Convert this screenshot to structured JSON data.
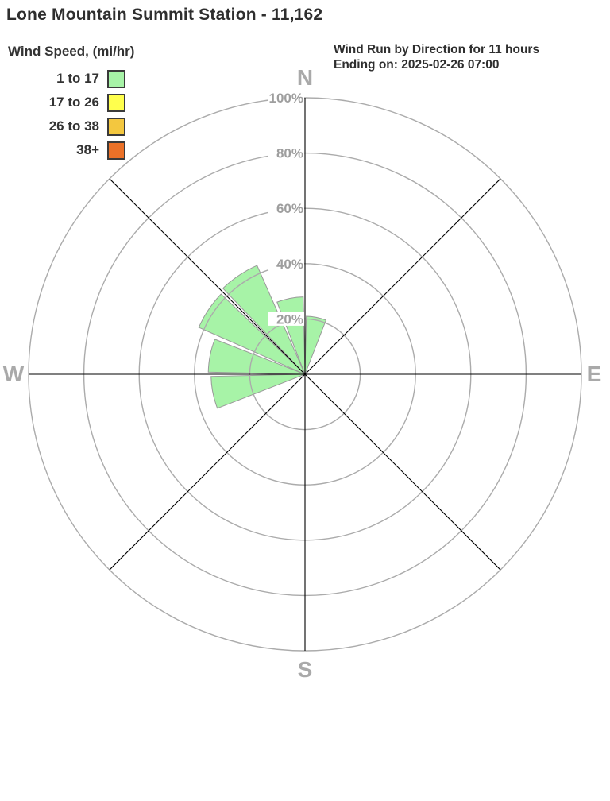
{
  "header": {
    "title": "Lone Mountain Summit Station - 11,162"
  },
  "legend": {
    "title": "Wind Speed, (mi/hr)",
    "bins": [
      {
        "label": "1 to 17",
        "color": "#a7f3a7"
      },
      {
        "label": "17 to 26",
        "color": "#ffff4d"
      },
      {
        "label": "26 to 38",
        "color": "#f3c73f"
      },
      {
        "label": "38+",
        "color": "#eb7128"
      }
    ]
  },
  "info": {
    "line1": "Wind Run by Direction for 11 hours",
    "line2": "Ending on: 2025-02-26 07:00"
  },
  "chart_data": {
    "type": "windrose",
    "title": "Wind Run by Direction for 11 hours",
    "subtitle": "Ending on: 2025-02-26 07:00",
    "duration_hours": 11,
    "ending_on": "2025-02-26 07:00",
    "units": "percent of wind run",
    "rlim": [
      0,
      100
    ],
    "radial_ticks_pct": [
      20,
      40,
      60,
      80,
      100
    ],
    "radial_tick_labels": [
      "20%",
      "40%",
      "60%",
      "80%",
      "100%"
    ],
    "compass_labels": [
      "N",
      "E",
      "S",
      "W"
    ],
    "grid": true,
    "sector_width_deg": 22.5,
    "legend_position": "top-left",
    "sectors": [
      {
        "direction": "N to NNE",
        "start_deg": 0.0,
        "end_deg": 22.5,
        "value_pct": 21,
        "bin": "1 to 17"
      },
      {
        "direction": "WSW to W",
        "start_deg": 247.5,
        "end_deg": 270.0,
        "value_pct": 34,
        "bin": "1 to 17"
      },
      {
        "direction": "W to WNW",
        "start_deg": 270.0,
        "end_deg": 292.5,
        "value_pct": 35,
        "bin": "1 to 17"
      },
      {
        "direction": "WNW to NW",
        "start_deg": 292.5,
        "end_deg": 315.0,
        "value_pct": 42,
        "bin": "1 to 17"
      },
      {
        "direction": "NW to NNW",
        "start_deg": 315.0,
        "end_deg": 337.5,
        "value_pct": 43,
        "bin": "1 to 17"
      },
      {
        "direction": "NNW to N",
        "start_deg": 337.5,
        "end_deg": 360.0,
        "value_pct": 28,
        "bin": "1 to 17"
      }
    ],
    "layout": {
      "grid_color": "#ababab",
      "spoke_color": "#000000",
      "tick_label_color": "#9e9e9e",
      "compass_label_color": "#a9a9a9",
      "petal_outline_color": "#999999"
    }
  }
}
